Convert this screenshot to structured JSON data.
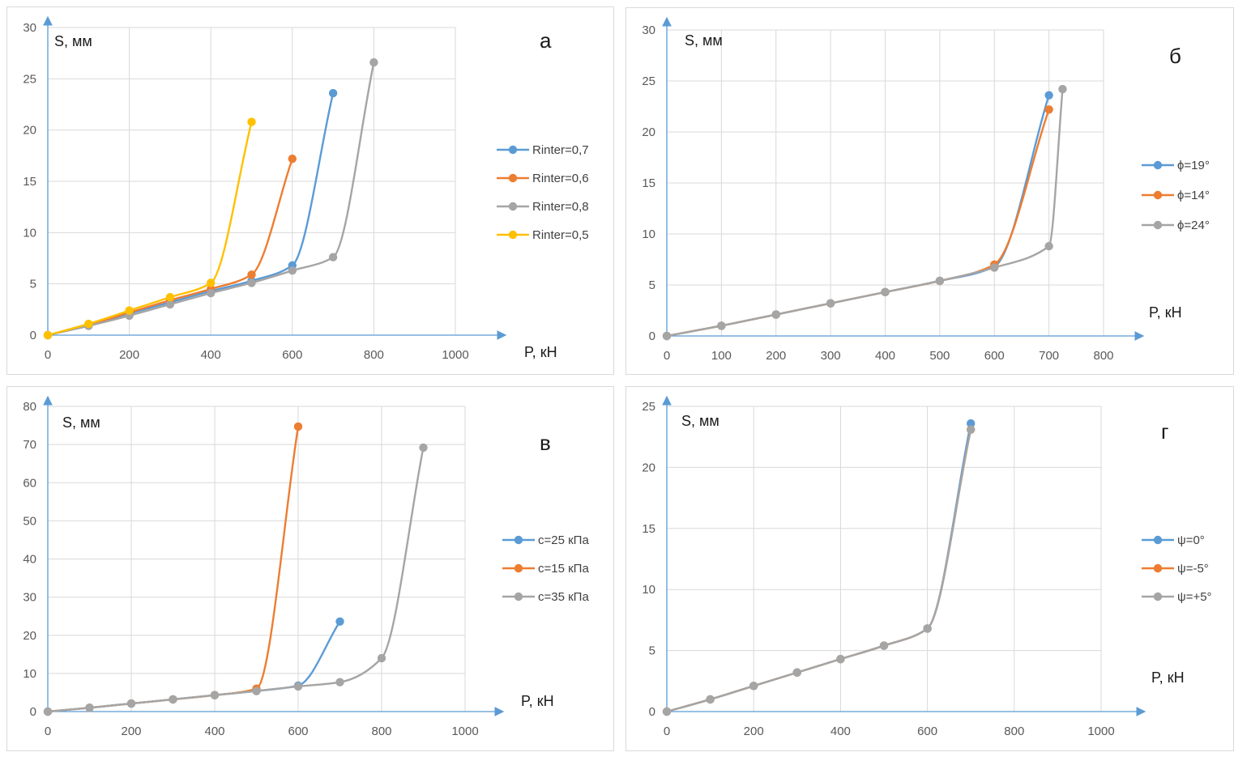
{
  "chart_data": [
    {
      "type": "line",
      "panel_label": "а",
      "ylabel": "S, мм",
      "xlabel": "P, кН",
      "xlim": [
        0,
        1000
      ],
      "ylim": [
        0,
        30
      ],
      "xticks": [
        0,
        200,
        400,
        600,
        800,
        1000
      ],
      "yticks": [
        0,
        5,
        10,
        15,
        20,
        25,
        30
      ],
      "legend_position": "right",
      "grid": true,
      "series": [
        {
          "name": "Rinter=0,7",
          "color": "#5b9bd5",
          "x": [
            0,
            100,
            200,
            300,
            400,
            500,
            600,
            700
          ],
          "y": [
            0,
            1.0,
            2.1,
            3.2,
            4.3,
            5.3,
            6.8,
            23.6
          ]
        },
        {
          "name": "Rinter=0,6",
          "color": "#ed7d31",
          "x": [
            0,
            100,
            200,
            300,
            400,
            500,
            600
          ],
          "y": [
            0,
            1.0,
            2.2,
            3.4,
            4.5,
            5.9,
            17.2
          ]
        },
        {
          "name": "Rinter=0,8",
          "color": "#a5a5a5",
          "x": [
            0,
            100,
            200,
            300,
            400,
            500,
            600,
            700,
            800
          ],
          "y": [
            0,
            0.9,
            1.9,
            3.0,
            4.1,
            5.1,
            6.3,
            7.6,
            26.6
          ]
        },
        {
          "name": "Rinter=0,5",
          "color": "#ffc000",
          "x": [
            0,
            100,
            200,
            300,
            400,
            500
          ],
          "y": [
            0,
            1.1,
            2.4,
            3.7,
            5.1,
            20.8
          ]
        }
      ]
    },
    {
      "type": "line",
      "panel_label": "б",
      "ylabel": "S, мм",
      "xlabel": "P, кН",
      "xlim": [
        0,
        800
      ],
      "ylim": [
        0,
        30
      ],
      "xticks": [
        0,
        100,
        200,
        300,
        400,
        500,
        600,
        700,
        800
      ],
      "yticks": [
        0,
        5,
        10,
        15,
        20,
        25,
        30
      ],
      "legend_position": "right",
      "grid": true,
      "series": [
        {
          "name": "ϕ=19°",
          "color": "#5b9bd5",
          "x": [
            0,
            100,
            200,
            300,
            400,
            500,
            600,
            700
          ],
          "y": [
            0,
            1.0,
            2.1,
            3.2,
            4.3,
            5.4,
            6.8,
            23.6
          ]
        },
        {
          "name": "ϕ=14°",
          "color": "#ed7d31",
          "x": [
            0,
            100,
            200,
            300,
            400,
            500,
            600,
            700
          ],
          "y": [
            0,
            1.0,
            2.1,
            3.2,
            4.3,
            5.4,
            7.0,
            22.2
          ]
        },
        {
          "name": "ϕ=24°",
          "color": "#a5a5a5",
          "x": [
            0,
            100,
            200,
            300,
            400,
            500,
            600,
            700,
            725
          ],
          "y": [
            0,
            1.0,
            2.1,
            3.2,
            4.3,
            5.4,
            6.7,
            8.8,
            24.2
          ]
        }
      ]
    },
    {
      "type": "line",
      "panel_label": "в",
      "ylabel": "S, мм",
      "xlabel": "P, кН",
      "xlim": [
        0,
        1000
      ],
      "ylim": [
        0,
        80
      ],
      "xticks": [
        0,
        200,
        400,
        600,
        800,
        1000
      ],
      "yticks": [
        0,
        10,
        20,
        30,
        40,
        50,
        60,
        70,
        80
      ],
      "legend_position": "right",
      "grid": true,
      "series": [
        {
          "name": "c=25 кПа",
          "color": "#5b9bd5",
          "x": [
            0,
            100,
            200,
            300,
            400,
            500,
            600,
            700
          ],
          "y": [
            0,
            1.0,
            2.1,
            3.2,
            4.3,
            5.4,
            6.8,
            23.6
          ]
        },
        {
          "name": "c=15 кПа",
          "color": "#ed7d31",
          "x": [
            0,
            100,
            200,
            300,
            400,
            500,
            600
          ],
          "y": [
            0,
            1.0,
            2.1,
            3.2,
            4.3,
            6.0,
            74.7
          ]
        },
        {
          "name": "c=35 кПа",
          "color": "#a5a5a5",
          "x": [
            0,
            100,
            200,
            300,
            400,
            500,
            600,
            700,
            800,
            900
          ],
          "y": [
            0,
            1.0,
            2.1,
            3.2,
            4.3,
            5.4,
            6.6,
            7.7,
            14.0,
            69.2
          ]
        }
      ]
    },
    {
      "type": "line",
      "panel_label": "г",
      "ylabel": "S, мм",
      "xlabel": "P, кН",
      "xlim": [
        0,
        1000
      ],
      "ylim": [
        0,
        25
      ],
      "xticks": [
        0,
        200,
        400,
        600,
        800,
        1000
      ],
      "yticks": [
        0,
        5,
        10,
        15,
        20,
        25
      ],
      "legend_position": "right",
      "grid": true,
      "series": [
        {
          "name": "ψ=0°",
          "color": "#5b9bd5",
          "x": [
            0,
            100,
            200,
            300,
            400,
            500,
            600,
            700
          ],
          "y": [
            0,
            1.0,
            2.1,
            3.2,
            4.3,
            5.4,
            6.8,
            23.6
          ]
        },
        {
          "name": "ψ=-5°",
          "color": "#ed7d31",
          "x": [
            0,
            100,
            200,
            300,
            400,
            500,
            600,
            700
          ],
          "y": [
            0,
            1.0,
            2.1,
            3.2,
            4.3,
            5.4,
            6.8,
            23.1
          ]
        },
        {
          "name": "ψ=+5°",
          "color": "#a5a5a5",
          "x": [
            0,
            100,
            200,
            300,
            400,
            500,
            600,
            700
          ],
          "y": [
            0,
            1.0,
            2.1,
            3.2,
            4.3,
            5.4,
            6.8,
            23.1
          ]
        }
      ]
    }
  ],
  "axis_color": "#5b9bd5"
}
